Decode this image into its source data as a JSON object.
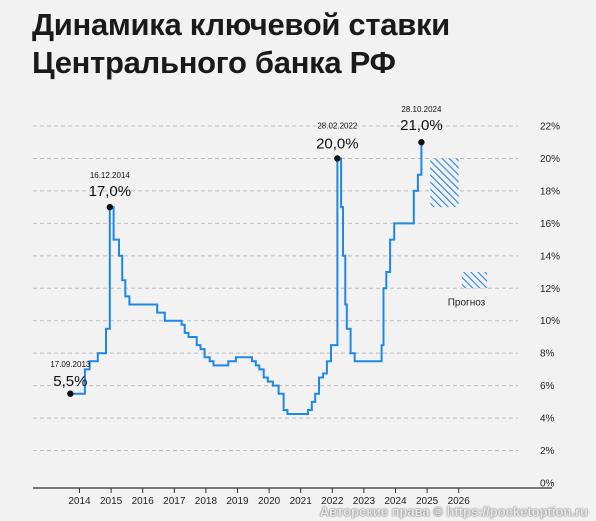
{
  "title_lines": [
    "Динамика ключевой ставки",
    "Центрального банка РФ"
  ],
  "watermark": "Авторские права © https://pocketoption.ru",
  "colors": {
    "line": "#1e88e5",
    "forecast": "#1e88e5",
    "grid": "#bdbdbd",
    "axis": "#333333",
    "background": "#f2f2f2"
  },
  "chart_data": {
    "type": "line",
    "title": "Динамика ключевой ставки Центрального банка РФ",
    "xlabel": "",
    "ylabel": "",
    "xlim": [
      2013.0,
      2027.0
    ],
    "ylim": [
      0,
      22
    ],
    "y_ticks": [
      0,
      2,
      4,
      6,
      8,
      10,
      12,
      14,
      16,
      18,
      20,
      22
    ],
    "y_tick_labels": [
      "0%",
      "2%",
      "4%",
      "6%",
      "8%",
      "10%",
      "12%",
      "14%",
      "16%",
      "18%",
      "20%",
      "22%"
    ],
    "x_ticks": [
      2014,
      2015,
      2016,
      2017,
      2018,
      2019,
      2020,
      2021,
      2022,
      2023,
      2024,
      2025,
      2026
    ],
    "x_tick_labels": [
      "2014",
      "2015",
      "2016",
      "2017",
      "2018",
      "2019",
      "2020",
      "2021",
      "2022",
      "2023",
      "2024",
      "2025",
      "2026"
    ],
    "grid": "horizontal dashed",
    "series": [
      {
        "step": "post",
        "points": [
          [
            2013.71,
            5.5
          ],
          [
            2014.17,
            7.0
          ],
          [
            2014.32,
            7.5
          ],
          [
            2014.58,
            8.0
          ],
          [
            2014.84,
            9.5
          ],
          [
            2014.96,
            17.0
          ],
          [
            2015.08,
            15.0
          ],
          [
            2015.25,
            14.0
          ],
          [
            2015.35,
            12.5
          ],
          [
            2015.45,
            11.5
          ],
          [
            2015.58,
            11.0
          ],
          [
            2016.46,
            10.5
          ],
          [
            2016.7,
            10.0
          ],
          [
            2017.23,
            9.75
          ],
          [
            2017.33,
            9.25
          ],
          [
            2017.45,
            9.0
          ],
          [
            2017.71,
            8.5
          ],
          [
            2017.83,
            8.25
          ],
          [
            2017.96,
            7.75
          ],
          [
            2018.12,
            7.5
          ],
          [
            2018.24,
            7.25
          ],
          [
            2018.71,
            7.5
          ],
          [
            2018.95,
            7.75
          ],
          [
            2019.46,
            7.5
          ],
          [
            2019.58,
            7.25
          ],
          [
            2019.69,
            7.0
          ],
          [
            2019.83,
            6.5
          ],
          [
            2019.96,
            6.25
          ],
          [
            2020.12,
            6.0
          ],
          [
            2020.3,
            5.5
          ],
          [
            2020.46,
            4.5
          ],
          [
            2020.58,
            4.25
          ],
          [
            2021.23,
            4.5
          ],
          [
            2021.35,
            5.0
          ],
          [
            2021.46,
            5.5
          ],
          [
            2021.58,
            6.5
          ],
          [
            2021.71,
            6.75
          ],
          [
            2021.83,
            7.5
          ],
          [
            2021.96,
            8.5
          ],
          [
            2022.16,
            20.0
          ],
          [
            2022.28,
            17.0
          ],
          [
            2022.34,
            14.0
          ],
          [
            2022.41,
            11.0
          ],
          [
            2022.46,
            9.5
          ],
          [
            2022.58,
            8.0
          ],
          [
            2022.71,
            7.5
          ],
          [
            2023.56,
            8.5
          ],
          [
            2023.62,
            12.0
          ],
          [
            2023.71,
            13.0
          ],
          [
            2023.83,
            15.0
          ],
          [
            2023.96,
            16.0
          ],
          [
            2024.58,
            18.0
          ],
          [
            2024.71,
            19.0
          ],
          [
            2024.82,
            21.0
          ],
          [
            2024.9,
            21.0
          ]
        ]
      }
    ],
    "forecast": {
      "label": "Прогноз",
      "ranges": [
        {
          "x": [
            2025.1,
            2026.0
          ],
          "y": [
            17.0,
            20.0
          ]
        },
        {
          "x": [
            2026.1,
            2026.9
          ],
          "y": [
            12.0,
            13.0
          ]
        }
      ]
    },
    "annotations": [
      {
        "date": "17.09.2013",
        "value": "5,5%",
        "x": 2013.71,
        "y": 5.5
      },
      {
        "date": "16.12.2014",
        "value": "17,0%",
        "x": 2014.96,
        "y": 17.0
      },
      {
        "date": "28.02.2022",
        "value": "20,0%",
        "x": 2022.16,
        "y": 20.0
      },
      {
        "date": "28.10.2024",
        "value": "21,0%",
        "x": 2024.82,
        "y": 21.0
      }
    ]
  }
}
